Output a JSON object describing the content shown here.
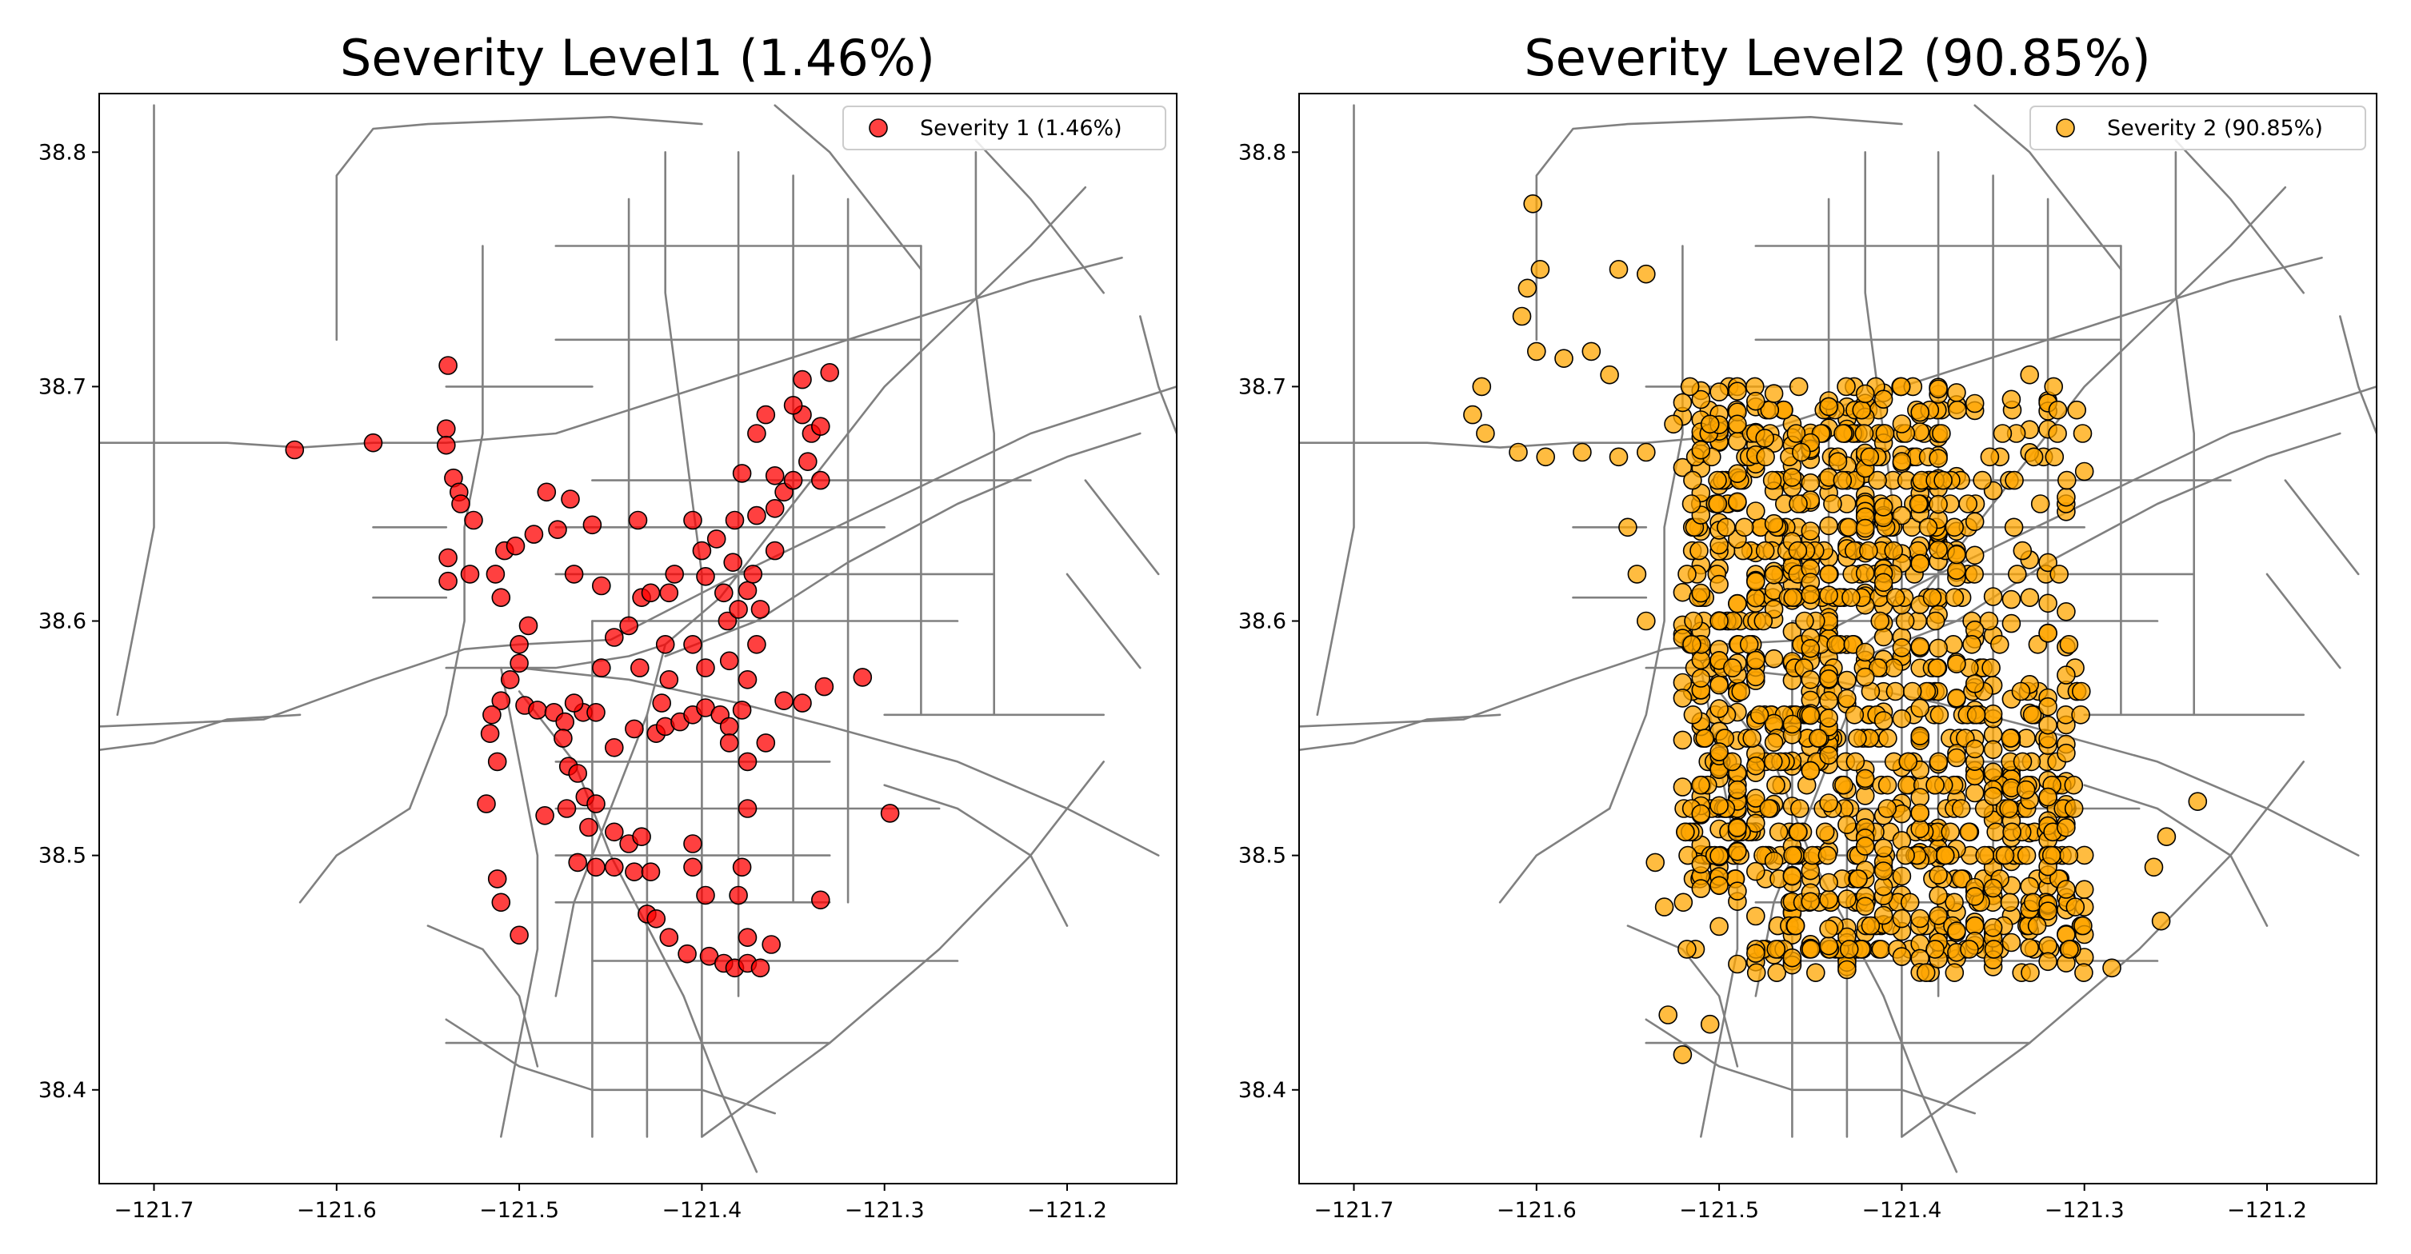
{
  "chart_data": [
    {
      "type": "scatter",
      "title": "Severity Level1 (1.46%)",
      "xlabel": "",
      "ylabel": "",
      "xlim": [
        -121.73,
        -121.14
      ],
      "ylim": [
        38.36,
        38.825
      ],
      "xticks": [
        "−121.7",
        "−121.6",
        "−121.5",
        "−121.4",
        "−121.3",
        "−121.2"
      ],
      "xtick_values": [
        -121.7,
        -121.6,
        -121.5,
        -121.4,
        -121.3,
        -121.2
      ],
      "yticks": [
        "38.4",
        "38.5",
        "38.6",
        "38.7",
        "38.8"
      ],
      "ytick_values": [
        38.4,
        38.5,
        38.6,
        38.7,
        38.8
      ],
      "legend": {
        "placement": "top-right",
        "label": "Severity 1 (1.46%)"
      },
      "marker_color": "#ff0000",
      "background": "road network basemap (gray lines)",
      "grid": false,
      "series": [
        {
          "name": "Severity 1 (1.46%)",
          "points": [
            [
              -121.623,
              38.673
            ],
            [
              -121.58,
              38.676
            ],
            [
              -121.539,
              38.709
            ],
            [
              -121.54,
              38.682
            ],
            [
              -121.54,
              38.675
            ],
            [
              -121.536,
              38.661
            ],
            [
              -121.533,
              38.655
            ],
            [
              -121.532,
              38.65
            ],
            [
              -121.525,
              38.643
            ],
            [
              -121.539,
              38.627
            ],
            [
              -121.539,
              38.617
            ],
            [
              -121.527,
              38.62
            ],
            [
              -121.513,
              38.62
            ],
            [
              -121.51,
              38.61
            ],
            [
              -121.508,
              38.63
            ],
            [
              -121.502,
              38.632
            ],
            [
              -121.492,
              38.637
            ],
            [
              -121.479,
              38.639
            ],
            [
              -121.485,
              38.655
            ],
            [
              -121.472,
              38.652
            ],
            [
              -121.46,
              38.641
            ],
            [
              -121.435,
              38.643
            ],
            [
              -121.495,
              38.598
            ],
            [
              -121.5,
              38.59
            ],
            [
              -121.5,
              38.582
            ],
            [
              -121.505,
              38.575
            ],
            [
              -121.51,
              38.566
            ],
            [
              -121.515,
              38.56
            ],
            [
              -121.516,
              38.552
            ],
            [
              -121.497,
              38.564
            ],
            [
              -121.49,
              38.562
            ],
            [
              -121.481,
              38.561
            ],
            [
              -121.475,
              38.557
            ],
            [
              -121.465,
              38.561
            ],
            [
              -121.458,
              38.561
            ],
            [
              -121.47,
              38.565
            ],
            [
              -121.476,
              38.55
            ],
            [
              -121.473,
              38.538
            ],
            [
              -121.464,
              38.525
            ],
            [
              -121.462,
              38.512
            ],
            [
              -121.458,
              38.522
            ],
            [
              -121.448,
              38.51
            ],
            [
              -121.44,
              38.505
            ],
            [
              -121.433,
              38.508
            ],
            [
              -121.448,
              38.495
            ],
            [
              -121.458,
              38.495
            ],
            [
              -121.468,
              38.497
            ],
            [
              -121.437,
              38.493
            ],
            [
              -121.428,
              38.493
            ],
            [
              -121.512,
              38.54
            ],
            [
              -121.518,
              38.522
            ],
            [
              -121.512,
              38.49
            ],
            [
              -121.51,
              38.48
            ],
            [
              -121.5,
              38.466
            ],
            [
              -121.486,
              38.517
            ],
            [
              -121.474,
              38.52
            ],
            [
              -121.468,
              38.535
            ],
            [
              -121.448,
              38.546
            ],
            [
              -121.437,
              38.554
            ],
            [
              -121.425,
              38.552
            ],
            [
              -121.42,
              38.555
            ],
            [
              -121.412,
              38.557
            ],
            [
              -121.405,
              38.56
            ],
            [
              -121.398,
              38.563
            ],
            [
              -121.39,
              38.56
            ],
            [
              -121.385,
              38.555
            ],
            [
              -121.378,
              38.562
            ],
            [
              -121.43,
              38.475
            ],
            [
              -121.425,
              38.473
            ],
            [
              -121.418,
              38.465
            ],
            [
              -121.408,
              38.458
            ],
            [
              -121.396,
              38.457
            ],
            [
              -121.388,
              38.454
            ],
            [
              -121.382,
              38.452
            ],
            [
              -121.375,
              38.454
            ],
            [
              -121.368,
              38.452
            ],
            [
              -121.362,
              38.462
            ],
            [
              -121.375,
              38.465
            ],
            [
              -121.398,
              38.483
            ],
            [
              -121.38,
              38.483
            ],
            [
              -121.405,
              38.495
            ],
            [
              -121.378,
              38.495
            ],
            [
              -121.405,
              38.505
            ],
            [
              -121.375,
              38.52
            ],
            [
              -121.375,
              38.54
            ],
            [
              -121.385,
              38.548
            ],
            [
              -121.365,
              38.548
            ],
            [
              -121.355,
              38.566
            ],
            [
              -121.345,
              38.565
            ],
            [
              -121.333,
              38.572
            ],
            [
              -121.312,
              38.576
            ],
            [
              -121.335,
              38.481
            ],
            [
              -121.297,
              38.518
            ],
            [
              -121.433,
              38.61
            ],
            [
              -121.418,
              38.612
            ],
            [
              -121.415,
              38.62
            ],
            [
              -121.4,
              38.63
            ],
            [
              -121.398,
              38.619
            ],
            [
              -121.388,
              38.612
            ],
            [
              -121.386,
              38.6
            ],
            [
              -121.38,
              38.605
            ],
            [
              -121.375,
              38.613
            ],
            [
              -121.368,
              38.605
            ],
            [
              -121.37,
              38.59
            ],
            [
              -121.375,
              38.575
            ],
            [
              -121.385,
              38.583
            ],
            [
              -121.398,
              38.58
            ],
            [
              -121.405,
              38.59
            ],
            [
              -121.42,
              38.59
            ],
            [
              -121.44,
              38.598
            ],
            [
              -121.448,
              38.593
            ],
            [
              -121.418,
              38.575
            ],
            [
              -121.422,
              38.565
            ],
            [
              -121.434,
              38.58
            ],
            [
              -121.455,
              38.58
            ],
            [
              -121.382,
              38.643
            ],
            [
              -121.37,
              38.645
            ],
            [
              -121.36,
              38.648
            ],
            [
              -121.355,
              38.655
            ],
            [
              -121.36,
              38.662
            ],
            [
              -121.35,
              38.66
            ],
            [
              -121.342,
              38.668
            ],
            [
              -121.335,
              38.66
            ],
            [
              -121.34,
              38.68
            ],
            [
              -121.345,
              38.688
            ],
            [
              -121.35,
              38.692
            ],
            [
              -121.345,
              38.703
            ],
            [
              -121.33,
              38.706
            ],
            [
              -121.335,
              38.683
            ],
            [
              -121.365,
              38.688
            ],
            [
              -121.37,
              38.68
            ],
            [
              -121.378,
              38.663
            ],
            [
              -121.372,
              38.62
            ],
            [
              -121.36,
              38.63
            ],
            [
              -121.405,
              38.643
            ],
            [
              -121.428,
              38.612
            ],
            [
              -121.455,
              38.615
            ],
            [
              -121.47,
              38.62
            ],
            [
              -121.383,
              38.625
            ],
            [
              -121.392,
              38.635
            ]
          ]
        }
      ]
    },
    {
      "type": "scatter",
      "title": "Severity Level2 (90.85%)",
      "xlabel": "",
      "ylabel": "",
      "xlim": [
        -121.73,
        -121.14
      ],
      "ylim": [
        38.36,
        38.825
      ],
      "xticks": [
        "−121.7",
        "−121.6",
        "−121.5",
        "−121.4",
        "−121.3",
        "−121.2"
      ],
      "xtick_values": [
        -121.7,
        -121.6,
        -121.5,
        -121.4,
        -121.3,
        -121.2
      ],
      "yticks": [
        "38.4",
        "38.5",
        "38.6",
        "38.7",
        "38.8"
      ],
      "ytick_values": [
        38.4,
        38.5,
        38.6,
        38.7,
        38.8
      ],
      "legend": {
        "placement": "top-right",
        "label": "Severity 2 (90.85%)"
      },
      "marker_color": "#ffa500",
      "background": "road network basemap (gray lines)",
      "grid": false,
      "series": [
        {
          "name": "Severity 2 (90.85%)",
          "points": [
            [
              -121.602,
              38.778
            ],
            [
              -121.598,
              38.75
            ],
            [
              -121.555,
              38.75
            ],
            [
              -121.54,
              38.748
            ],
            [
              -121.605,
              38.742
            ],
            [
              -121.608,
              38.73
            ],
            [
              -121.6,
              38.715
            ],
            [
              -121.585,
              38.712
            ],
            [
              -121.57,
              38.715
            ],
            [
              -121.56,
              38.705
            ],
            [
              -121.63,
              38.7
            ],
            [
              -121.635,
              38.688
            ],
            [
              -121.628,
              38.68
            ],
            [
              -121.61,
              38.672
            ],
            [
              -121.595,
              38.67
            ],
            [
              -121.575,
              38.672
            ],
            [
              -121.555,
              38.67
            ],
            [
              -121.54,
              38.672
            ],
            [
              -121.525,
              38.684
            ],
            [
              -121.505,
              38.684
            ],
            [
              -121.49,
              38.684
            ],
            [
              -121.475,
              38.678
            ],
            [
              -121.455,
              38.672
            ],
            [
              -121.435,
              38.668
            ],
            [
              -121.33,
              38.705
            ],
            [
              -121.285,
              38.452
            ],
            [
              -121.258,
              38.472
            ],
            [
              -121.238,
              38.523
            ],
            [
              -121.255,
              38.508
            ],
            [
              -121.262,
              38.495
            ],
            [
              -121.305,
              38.478
            ],
            [
              -121.318,
              38.5
            ],
            [
              -121.332,
              38.528
            ],
            [
              -121.528,
              38.432
            ],
            [
              -121.52,
              38.415
            ],
            [
              -121.505,
              38.428
            ],
            [
              -121.53,
              38.478
            ],
            [
              -121.535,
              38.497
            ],
            [
              -121.515,
              38.59
            ],
            [
              -121.545,
              38.62
            ],
            [
              -121.55,
              38.64
            ],
            [
              -121.54,
              38.6
            ],
            [
              -121.5,
              38.6
            ],
            [
              -121.45,
              38.575
            ]
          ],
          "dense_region": {
            "x_range": [
              -121.52,
              -121.3
            ],
            "y_range": [
              38.45,
              38.7
            ],
            "note": "markers cover most of the city grid"
          }
        }
      ]
    }
  ]
}
